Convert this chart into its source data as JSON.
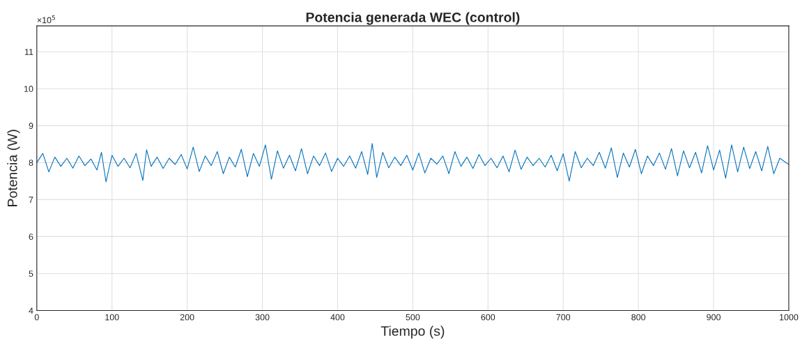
{
  "chart_data": {
    "type": "line",
    "title": "Potencia generada WEC (control)",
    "xlabel": "Tiempo (s)",
    "ylabel": "Potencia (W)",
    "annotations": [
      "×10$^{5}$"
    ],
    "x": [
      0,
      8,
      16,
      24,
      32,
      40,
      48,
      56,
      64,
      72,
      80,
      86,
      92,
      100,
      108,
      116,
      124,
      132,
      141,
      146,
      152,
      160,
      168,
      176,
      184,
      192,
      200,
      208,
      216,
      224,
      232,
      240,
      248,
      256,
      264,
      272,
      280,
      288,
      296,
      304,
      312,
      320,
      328,
      336,
      344,
      352,
      360,
      368,
      376,
      384,
      392,
      400,
      408,
      416,
      424,
      432,
      440,
      446,
      452,
      460,
      468,
      476,
      484,
      492,
      500,
      508,
      516,
      524,
      532,
      540,
      548,
      556,
      564,
      572,
      580,
      588,
      596,
      604,
      612,
      620,
      628,
      636,
      644,
      652,
      660,
      668,
      676,
      684,
      692,
      700,
      708,
      716,
      724,
      732,
      740,
      748,
      756,
      764,
      772,
      780,
      788,
      796,
      804,
      812,
      820,
      828,
      836,
      844,
      852,
      860,
      868,
      876,
      884,
      892,
      900,
      908,
      916,
      924,
      932,
      940,
      948,
      956,
      964,
      972,
      980,
      988,
      1000
    ],
    "series": [
      {
        "color": "#0072bd",
        "values": [
          8.0,
          8.25,
          7.75,
          8.15,
          7.9,
          8.12,
          7.85,
          8.18,
          7.92,
          8.1,
          7.8,
          8.28,
          7.48,
          8.2,
          7.9,
          8.12,
          7.86,
          8.25,
          7.52,
          8.35,
          7.9,
          8.15,
          7.84,
          8.12,
          7.95,
          8.22,
          7.83,
          8.42,
          7.76,
          8.18,
          7.92,
          8.3,
          7.7,
          8.15,
          7.88,
          8.36,
          7.62,
          8.25,
          7.9,
          8.48,
          7.55,
          8.32,
          7.85,
          8.2,
          7.78,
          8.38,
          7.7,
          8.18,
          7.92,
          8.26,
          7.76,
          8.12,
          7.9,
          8.18,
          7.85,
          8.3,
          7.68,
          8.52,
          7.6,
          8.28,
          7.86,
          8.15,
          7.92,
          8.2,
          7.8,
          8.26,
          7.72,
          8.12,
          7.96,
          8.18,
          7.7,
          8.3,
          7.9,
          8.15,
          7.84,
          8.22,
          7.92,
          8.12,
          7.86,
          8.18,
          7.75,
          8.34,
          7.82,
          8.15,
          7.92,
          8.12,
          7.88,
          8.2,
          7.78,
          8.24,
          7.5,
          8.3,
          7.86,
          8.12,
          7.92,
          8.28,
          7.85,
          8.4,
          7.6,
          8.26,
          7.88,
          8.36,
          7.7,
          8.18,
          7.92,
          8.26,
          7.82,
          8.38,
          7.64,
          8.32,
          7.86,
          8.28,
          7.72,
          8.46,
          7.8,
          8.34,
          7.58,
          8.48,
          7.75,
          8.42,
          7.84,
          8.3,
          7.78,
          8.44,
          7.7,
          8.12,
          7.95
        ]
      }
    ],
    "xlim": [
      0,
      1000
    ],
    "xticks": [
      0,
      100,
      200,
      300,
      400,
      500,
      600,
      700,
      800,
      900,
      1000
    ],
    "ylim": [
      4,
      11.7
    ],
    "yticks": [
      4,
      5,
      6,
      7,
      8,
      9,
      10,
      11
    ],
    "grid": true,
    "line_style": "solid",
    "marker": "none"
  }
}
